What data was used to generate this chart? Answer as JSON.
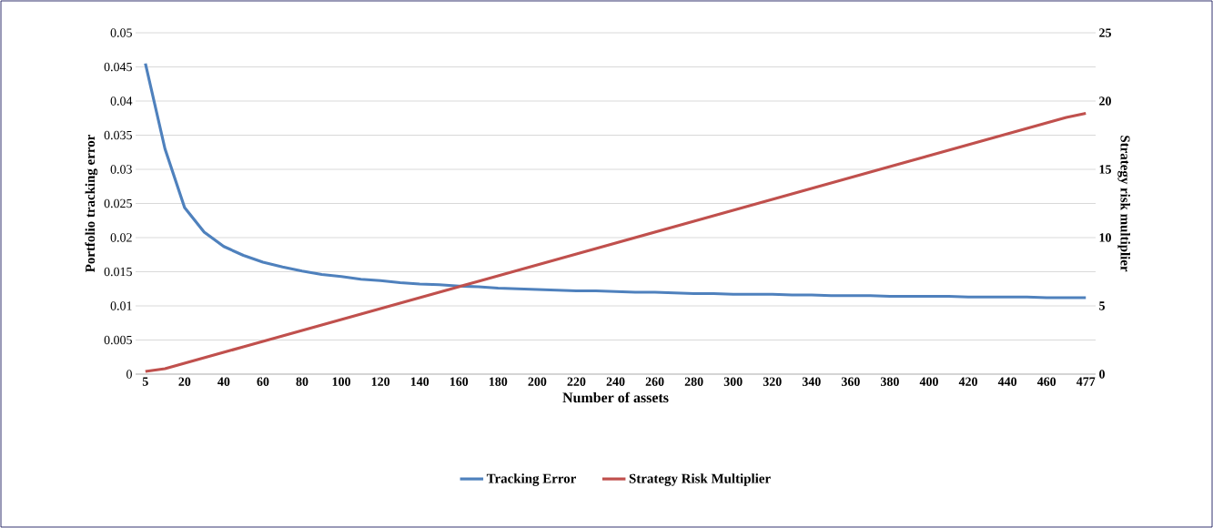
{
  "chart_data": {
    "type": "line",
    "xlabel": "Number of assets",
    "ylabel": "Portfolio tracking error",
    "y2label": "Strategy risk multiplier",
    "categories": [
      "5",
      null,
      "20",
      null,
      "40",
      null,
      "60",
      null,
      "80",
      null,
      "100",
      null,
      "120",
      null,
      "140",
      null,
      "160",
      null,
      "180",
      null,
      "200",
      null,
      "220",
      null,
      "240",
      null,
      "260",
      null,
      "280",
      null,
      "300",
      null,
      "320",
      null,
      "340",
      null,
      "360",
      null,
      "380",
      null,
      "400",
      null,
      "420",
      null,
      "440",
      null,
      "460",
      null,
      "477"
    ],
    "series": [
      {
        "name": "Tracking Error",
        "color": "#4f81bd",
        "values": [
          0.0455,
          0.033,
          0.0244,
          0.0208,
          0.0187,
          0.0174,
          0.0164,
          0.0157,
          0.0151,
          0.0146,
          0.0143,
          0.0139,
          0.0137,
          0.0134,
          0.0132,
          0.0131,
          0.0129,
          0.0128,
          0.0126,
          0.0125,
          0.0124,
          0.0123,
          0.0122,
          0.0122,
          0.0121,
          0.012,
          0.012,
          0.0119,
          0.0118,
          0.0118,
          0.0117,
          0.0117,
          0.0117,
          0.0116,
          0.0116,
          0.0115,
          0.0115,
          0.0115,
          0.0114,
          0.0114,
          0.0114,
          0.0114,
          0.0113,
          0.0113,
          0.0113,
          0.0113,
          0.0112,
          0.0112,
          0.0112
        ]
      },
      {
        "name": "Strategy Risk Multiplier",
        "color": "#c0504d",
        "axis": "y2",
        "values": [
          0.2,
          0.4,
          0.8,
          1.2,
          1.6,
          2.0,
          2.4,
          2.8,
          3.2,
          3.6,
          4.0,
          4.4,
          4.8,
          5.2,
          5.6,
          6.0,
          6.4,
          6.8,
          7.2,
          7.6,
          8.0,
          8.4,
          8.8,
          9.2,
          9.6,
          10.0,
          10.4,
          10.8,
          11.2,
          11.6,
          12.0,
          12.4,
          12.8,
          13.2,
          13.6,
          14.0,
          14.4,
          14.8,
          15.2,
          15.6,
          16.0,
          16.4,
          16.8,
          17.2,
          17.6,
          18.0,
          18.4,
          18.8,
          19.1
        ]
      }
    ],
    "ylim": [
      0,
      0.05
    ],
    "yticks": [
      0,
      0.005,
      0.01,
      0.015,
      0.02,
      0.025,
      0.03,
      0.035,
      0.04,
      0.045,
      0.05
    ],
    "y2lim": [
      0,
      25
    ],
    "y2ticks": [
      0,
      5,
      10,
      15,
      20,
      25
    ],
    "grid": "y",
    "legend": "bottom"
  }
}
